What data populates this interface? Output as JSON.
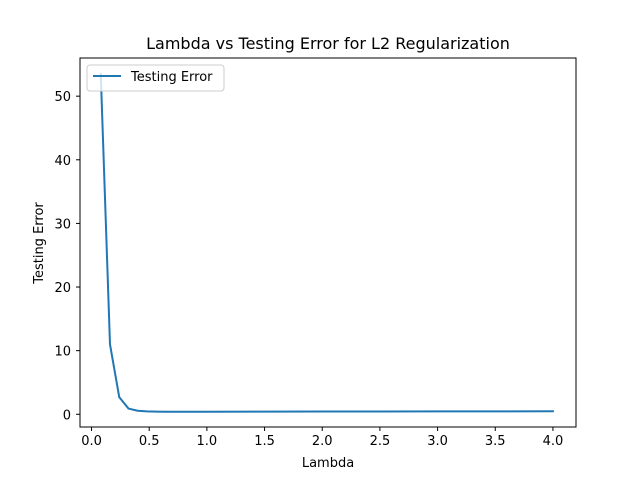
{
  "chart_data": {
    "type": "line",
    "title": "Lambda vs Testing Error for L2 Regularization",
    "xlabel": "Lambda",
    "ylabel": "Testing Error",
    "xlim": [
      -0.1,
      4.2
    ],
    "ylim": [
      -2.0,
      56.0
    ],
    "xticks": [
      0.0,
      0.5,
      1.0,
      1.5,
      2.0,
      2.5,
      3.0,
      3.5,
      4.0
    ],
    "xtick_labels": [
      "0.0",
      "0.5",
      "1.0",
      "1.5",
      "2.0",
      "2.5",
      "3.0",
      "3.5",
      "4.0"
    ],
    "yticks": [
      0,
      10,
      20,
      30,
      40,
      50
    ],
    "ytick_labels": [
      "0",
      "10",
      "20",
      "30",
      "40",
      "50"
    ],
    "grid": false,
    "legend_position": "top-left",
    "series": [
      {
        "name": "Testing Error",
        "color": "#1f77b4",
        "x": [
          0.08,
          0.16,
          0.24,
          0.32,
          0.4,
          0.48,
          0.56,
          0.64,
          0.8,
          1.0,
          1.5,
          2.0,
          2.5,
          3.0,
          3.5,
          4.0
        ],
        "y": [
          53.5,
          11.0,
          2.7,
          0.9,
          0.55,
          0.45,
          0.42,
          0.4,
          0.4,
          0.4,
          0.42,
          0.43,
          0.44,
          0.45,
          0.46,
          0.47
        ]
      }
    ]
  }
}
